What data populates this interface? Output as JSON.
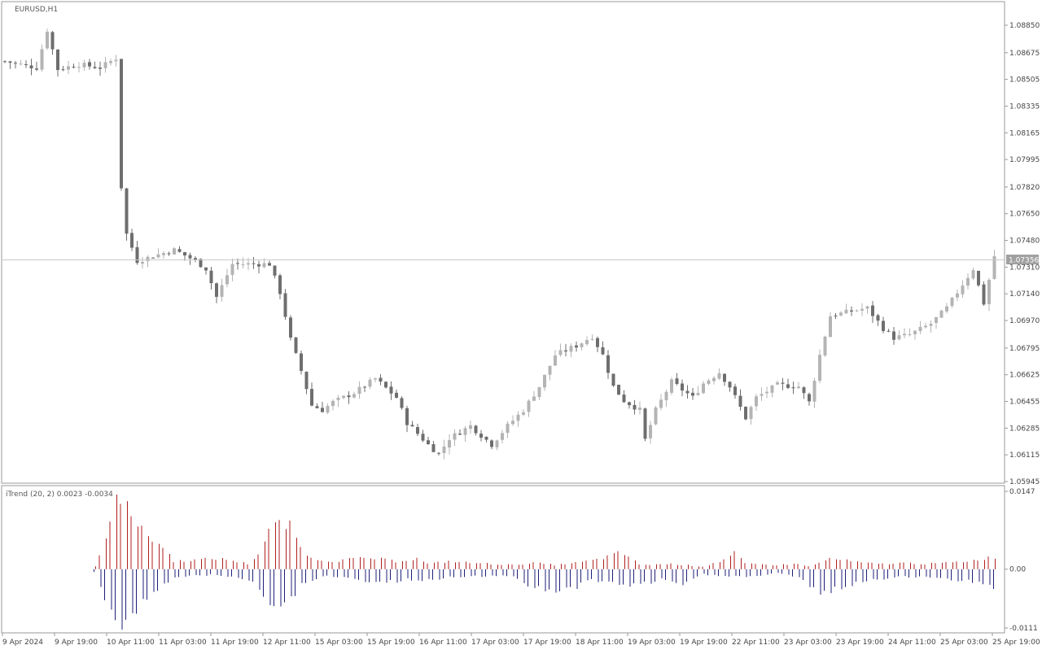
{
  "window": {
    "main_label": "EURUSD,H1",
    "indicator_label": "iTrend (20, 2) 0.0023 -0.0034",
    "current_price_label": "1.07356"
  },
  "colors": {
    "up_candle": "#b4b4b4",
    "down_candle": "#6e6e6e",
    "indicator_up": "#b01e1e",
    "indicator_down": "#1e1e78",
    "frame": "#9a9a9a",
    "price_line": "#c8c8c8"
  },
  "chart_data": [
    {
      "type": "candlestick",
      "symbol": "EURUSD",
      "timeframe": "H1",
      "y_ticks": [
        "1.08850",
        "1.08675",
        "1.08505",
        "1.08335",
        "1.08165",
        "1.07995",
        "1.07820",
        "1.07650",
        "1.07480",
        "1.07310",
        "1.07140",
        "1.06970",
        "1.06795",
        "1.06625",
        "1.06455",
        "1.06285",
        "1.06115",
        "1.05945"
      ],
      "ylim": [
        1.05945,
        1.0893
      ],
      "current_price": 1.07356,
      "x_labels": [
        "9 Apr 2024",
        "9 Apr 19:00",
        "10 Apr 11:00",
        "11 Apr 03:00",
        "11 Apr 19:00",
        "12 Apr 11:00",
        "15 Apr 03:00",
        "15 Apr 19:00",
        "16 Apr 11:00",
        "17 Apr 03:00",
        "17 Apr 19:00",
        "18 Apr 11:00",
        "19 Apr 03:00",
        "19 Apr 19:00",
        "22 Apr 11:00",
        "23 Apr 03:00",
        "23 Apr 19:00",
        "24 Apr 11:00",
        "25 Apr 03:00",
        "25 Apr 19:00"
      ],
      "close_path": [
        [
          0,
          1.0862
        ],
        [
          6,
          1.0858
        ],
        [
          8,
          1.0882
        ],
        [
          10,
          1.0857
        ],
        [
          14,
          1.086
        ],
        [
          18,
          1.0858
        ],
        [
          21,
          1.0864
        ],
        [
          22,
          1.0782
        ],
        [
          23,
          1.0752
        ],
        [
          25,
          1.0735
        ],
        [
          32,
          1.0742
        ],
        [
          36,
          1.0735
        ],
        [
          38,
          1.073
        ],
        [
          40,
          1.0712
        ],
        [
          43,
          1.0733
        ],
        [
          50,
          1.0733
        ],
        [
          52,
          1.0715
        ],
        [
          54,
          1.0685
        ],
        [
          56,
          1.0665
        ],
        [
          58,
          1.0643
        ],
        [
          60,
          1.064
        ],
        [
          62,
          1.0645
        ],
        [
          66,
          1.0651
        ],
        [
          70,
          1.066
        ],
        [
          74,
          1.0648
        ],
        [
          76,
          1.0632
        ],
        [
          78,
          1.0625
        ],
        [
          80,
          1.0618
        ],
        [
          82,
          1.0612
        ],
        [
          84,
          1.0622
        ],
        [
          88,
          1.063
        ],
        [
          92,
          1.0618
        ],
        [
          95,
          1.063
        ],
        [
          98,
          1.064
        ],
        [
          101,
          1.0655
        ],
        [
          104,
          1.0675
        ],
        [
          108,
          1.0681
        ],
        [
          111,
          1.0687
        ],
        [
          113,
          1.0675
        ],
        [
          115,
          1.0655
        ],
        [
          117,
          1.0646
        ],
        [
          120,
          1.064
        ],
        [
          121,
          1.0621
        ],
        [
          123,
          1.064
        ],
        [
          126,
          1.0658
        ],
        [
          130,
          1.0648
        ],
        [
          132,
          1.0657
        ],
        [
          135,
          1.0664
        ],
        [
          137,
          1.0655
        ],
        [
          140,
          1.0635
        ],
        [
          142,
          1.0648
        ],
        [
          146,
          1.0656
        ],
        [
          150,
          1.0655
        ],
        [
          152,
          1.0645
        ],
        [
          154,
          1.0675
        ],
        [
          156,
          1.07
        ],
        [
          160,
          1.0703
        ],
        [
          163,
          1.0705
        ],
        [
          166,
          1.0692
        ],
        [
          168,
          1.0686
        ],
        [
          171,
          1.0688
        ],
        [
          175,
          1.0695
        ],
        [
          178,
          1.0705
        ],
        [
          181,
          1.072
        ],
        [
          183,
          1.073
        ],
        [
          185,
          1.0708
        ],
        [
          187,
          1.0738
        ]
      ]
    },
    {
      "type": "histogram",
      "name": "iTrend (20, 2)",
      "y_ticks": [
        "0.0147",
        "0.00",
        "-0.0111"
      ],
      "ylim": [
        -0.0111,
        0.0147
      ],
      "values": [
        0.0023,
        -0.0034
      ],
      "up_path": [
        [
          17,
          0.0005
        ],
        [
          20,
          0.008
        ],
        [
          21,
          0.014
        ],
        [
          23,
          0.014
        ],
        [
          25,
          0.008
        ],
        [
          30,
          0.004
        ],
        [
          32,
          0.0015
        ],
        [
          40,
          0.002
        ],
        [
          42,
          0.0018
        ],
        [
          46,
          0.001
        ],
        [
          48,
          0.003
        ],
        [
          50,
          0.0075
        ],
        [
          52,
          0.0085
        ],
        [
          54,
          0.008
        ],
        [
          56,
          0.004
        ],
        [
          58,
          0.002
        ],
        [
          62,
          0.0015
        ],
        [
          66,
          0.002
        ],
        [
          70,
          0.002
        ],
        [
          74,
          0.0015
        ],
        [
          78,
          0.002
        ],
        [
          80,
          0.001
        ],
        [
          84,
          0.0015
        ],
        [
          88,
          0.0012
        ],
        [
          92,
          0.001
        ],
        [
          96,
          0.0008
        ],
        [
          100,
          0.0012
        ],
        [
          104,
          0.0008
        ],
        [
          108,
          0.0012
        ],
        [
          112,
          0.0018
        ],
        [
          116,
          0.003
        ],
        [
          118,
          0.0025
        ],
        [
          120,
          0.0008
        ],
        [
          126,
          0.001
        ],
        [
          132,
          0.0005
        ],
        [
          136,
          0.0018
        ],
        [
          138,
          0.003
        ],
        [
          140,
          0.001
        ],
        [
          146,
          0.0008
        ],
        [
          150,
          0.001
        ],
        [
          152,
          0.0005
        ],
        [
          156,
          0.002
        ],
        [
          160,
          0.0015
        ],
        [
          162,
          0.0012
        ],
        [
          166,
          0.001
        ],
        [
          170,
          0.0012
        ],
        [
          174,
          0.001
        ],
        [
          178,
          0.0012
        ],
        [
          182,
          0.0015
        ],
        [
          185,
          0.002
        ],
        [
          187,
          0.0023
        ]
      ],
      "down_path": [
        [
          17,
          -0.0005
        ],
        [
          20,
          -0.008
        ],
        [
          21,
          -0.0105
        ],
        [
          23,
          -0.01
        ],
        [
          25,
          -0.0075
        ],
        [
          30,
          -0.003
        ],
        [
          32,
          -0.0015
        ],
        [
          40,
          -0.001
        ],
        [
          46,
          -0.002
        ],
        [
          48,
          -0.0035
        ],
        [
          50,
          -0.006
        ],
        [
          52,
          -0.0065
        ],
        [
          54,
          -0.006
        ],
        [
          56,
          -0.003
        ],
        [
          60,
          -0.0012
        ],
        [
          66,
          -0.002
        ],
        [
          72,
          -0.0025
        ],
        [
          76,
          -0.002
        ],
        [
          80,
          -0.002
        ],
        [
          84,
          -0.0015
        ],
        [
          88,
          -0.0015
        ],
        [
          92,
          -0.0012
        ],
        [
          96,
          -0.0015
        ],
        [
          100,
          -0.0035
        ],
        [
          104,
          -0.004
        ],
        [
          108,
          -0.0035
        ],
        [
          110,
          -0.002
        ],
        [
          114,
          -0.0025
        ],
        [
          118,
          -0.003
        ],
        [
          120,
          -0.003
        ],
        [
          124,
          -0.002
        ],
        [
          128,
          -0.003
        ],
        [
          132,
          -0.001
        ],
        [
          136,
          -0.0012
        ],
        [
          140,
          -0.0015
        ],
        [
          146,
          -0.0008
        ],
        [
          150,
          -0.0015
        ],
        [
          152,
          -0.003
        ],
        [
          154,
          -0.005
        ],
        [
          156,
          -0.004
        ],
        [
          160,
          -0.003
        ],
        [
          164,
          -0.002
        ],
        [
          168,
          -0.0015
        ],
        [
          172,
          -0.0015
        ],
        [
          176,
          -0.0015
        ],
        [
          180,
          -0.002
        ],
        [
          184,
          -0.0025
        ],
        [
          186,
          -0.003
        ],
        [
          187,
          -0.0034
        ]
      ]
    }
  ]
}
